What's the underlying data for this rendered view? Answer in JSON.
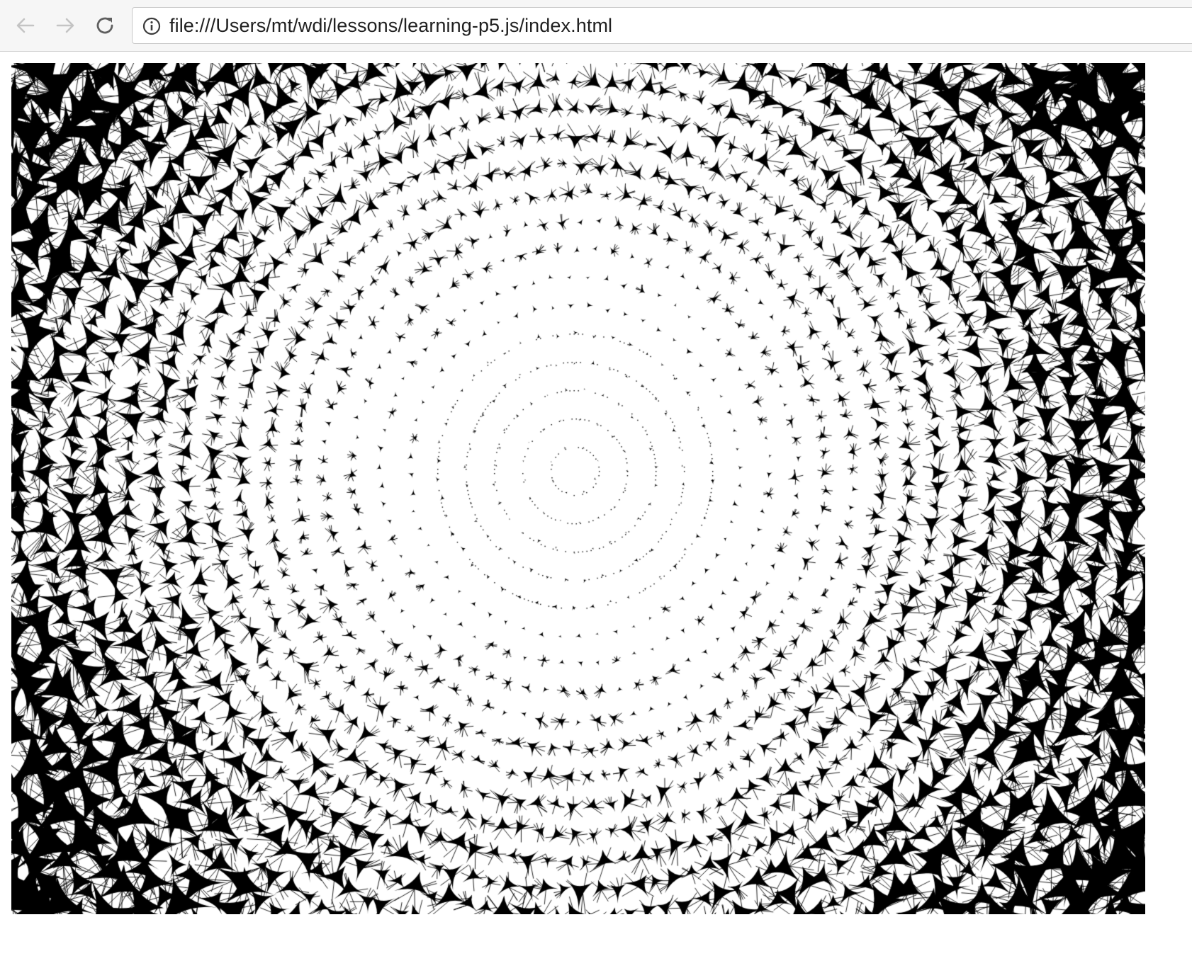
{
  "browser": {
    "back_icon": "arrow-left-icon",
    "forward_icon": "arrow-right-icon",
    "reload_icon": "reload-icon",
    "site_info_icon": "info-circle-icon",
    "url": "file:///Users/mt/wdi/lessons/learning-p5.js/index.html",
    "nav_disabled_color": "#c4c4c4",
    "icon_color": "#5f5f5f"
  },
  "sketch": {
    "description_kind": "p5.js concentric ring pattern",
    "background_color": "#ffffff",
    "stroke_color": "#000000"
  }
}
